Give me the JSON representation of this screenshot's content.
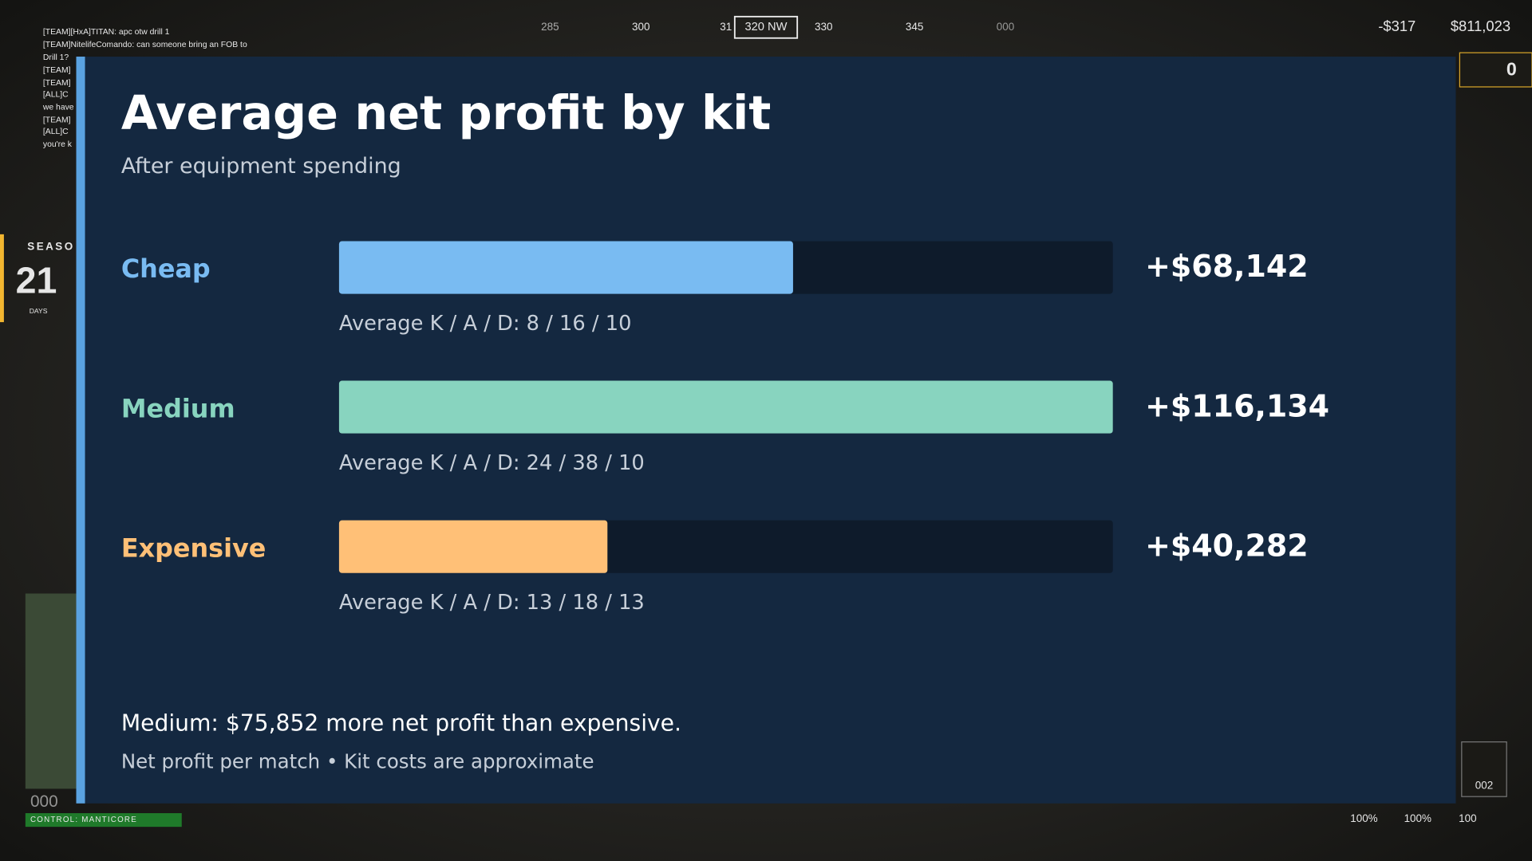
{
  "chart_data": {
    "type": "bar",
    "orientation": "horizontal",
    "title": "Average net profit by kit",
    "subtitle": "After equipment spending",
    "categories": [
      "Cheap",
      "Medium",
      "Expensive"
    ],
    "values": [
      68142,
      116134,
      40282
    ],
    "value_labels": [
      "+$68,142",
      "+$116,134",
      "+$40,282"
    ],
    "colors": [
      "#79bbf2",
      "#88d4bf",
      "#ffc077"
    ],
    "annotations": [
      "Average K / A / D: 8 / 16 / 10",
      "Average K / A / D: 24 / 38 / 10",
      "Average K / A / D: 13 / 18 / 13"
    ],
    "xlim": [
      0,
      116134
    ],
    "footnote": "Medium: $75,852 more net profit than expensive.",
    "source_note": "Net profit per match • Kit costs are approximate"
  },
  "hud": {
    "compass": [
      "285",
      "300",
      "31",
      "320 NW",
      "330",
      "345",
      "000"
    ],
    "money_change": "-$317",
    "money": "$811,023",
    "gold": "0",
    "chat": [
      "[TEAM][HxA]TITAN: apc otw drill 1",
      "[TEAM]NitelifeComando: can someone bring an FOB to",
      "Drill 1?",
      "[TEAM]",
      "[TEAM]",
      "[ALL]C",
      "we have",
      "[TEAM]",
      "[ALL]C",
      "you're k"
    ],
    "season": "SEASO",
    "days_value": "21",
    "days_label": "DAYS",
    "score": "000",
    "control": "CONTROL: MANTICORE",
    "ammo": "002",
    "status": [
      "100%",
      "100%",
      "100"
    ]
  }
}
